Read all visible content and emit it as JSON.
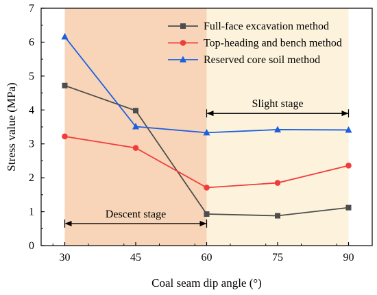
{
  "chart_data": {
    "type": "line",
    "xlabel": "Coal seam dip angle (°)",
    "ylabel": "Stress value (MPa)",
    "x": [
      30,
      45,
      60,
      75,
      90
    ],
    "xlim": [
      25,
      95
    ],
    "ylim": [
      0,
      7
    ],
    "xticks": [
      "30",
      "45",
      "60",
      "75",
      "90"
    ],
    "yticks": [
      "0",
      "1",
      "2",
      "3",
      "4",
      "5",
      "6",
      "7"
    ],
    "grid": false,
    "legend_position": "top-right",
    "series": [
      {
        "name": "Full-face excavation method",
        "values": [
          4.72,
          3.98,
          0.93,
          0.88,
          1.12
        ],
        "color": "#4d4d4d",
        "marker": "square"
      },
      {
        "name": "Top-heading and bench method",
        "values": [
          3.22,
          2.88,
          1.71,
          1.85,
          2.36
        ],
        "color": "#f03c3c",
        "marker": "circle"
      },
      {
        "name": "Reserved core soil method",
        "values": [
          6.16,
          3.51,
          3.33,
          3.42,
          3.41
        ],
        "color": "#1a5fe0",
        "marker": "triangle"
      }
    ],
    "regions": [
      {
        "x_range": [
          30,
          60
        ],
        "color": "#f8d5b8"
      },
      {
        "x_range": [
          60,
          90
        ],
        "color": "#fdf3dc"
      }
    ],
    "annotations": [
      {
        "label": "Descent stage",
        "x_range": [
          30,
          60
        ],
        "y": 0.65
      },
      {
        "label": "Slight stage",
        "x_range": [
          60,
          90
        ],
        "y": 3.9
      }
    ]
  }
}
